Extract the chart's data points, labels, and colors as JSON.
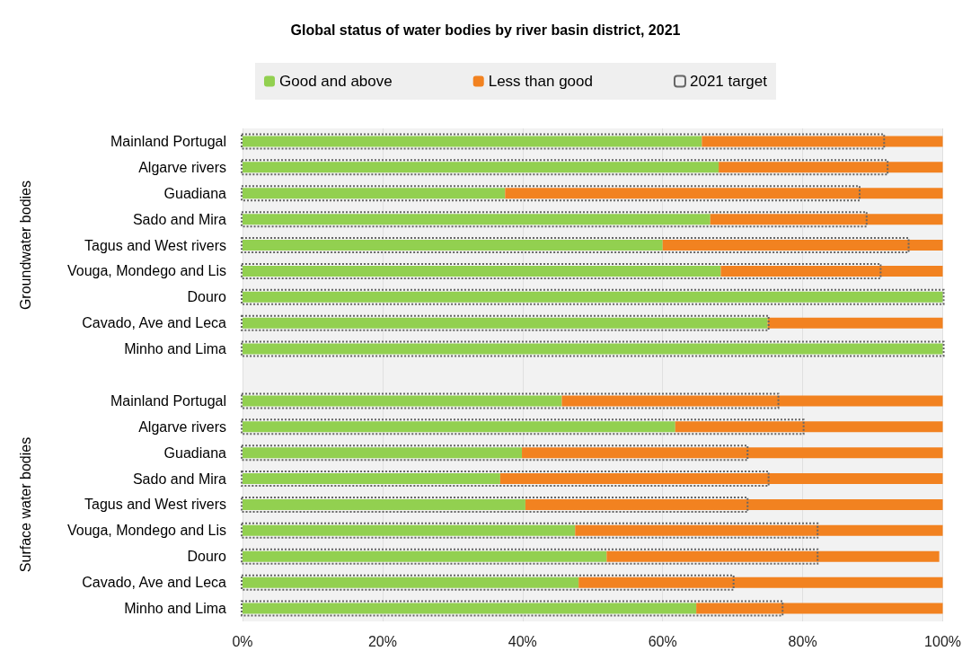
{
  "chart_data": {
    "type": "bar",
    "orientation": "horizontal",
    "title": "Global status of water bodies by river basin district, 2021",
    "categories": [
      "Mainland Portugal",
      "Algarve rivers",
      "Guadiana",
      "Sado and Mira",
      "Tagus and West rivers",
      "Vouga, Mondego and Lis",
      "Douro",
      "Cavado, Ave and Leca",
      "Minho and Lima",
      null,
      "Mainland Portugal",
      "Algarve rivers",
      "Guadiana",
      "Sado and Mira",
      "Tagus and West rivers",
      "Vouga, Mondego and Lis",
      "Douro",
      "Cavado, Ave and Leca",
      "Minho and Lima"
    ],
    "series": [
      {
        "name": "Good and above",
        "color": "#92d050",
        "base": [
          0,
          0,
          0,
          0,
          0,
          0,
          0,
          0,
          0,
          null,
          0,
          0,
          0,
          0,
          0,
          0,
          0,
          0,
          0
        ],
        "values": [
          65.6,
          68,
          37.5,
          66.8,
          60,
          68.3,
          100,
          75,
          100,
          null,
          45.6,
          61.8,
          39.9,
          36.8,
          40.4,
          47.5,
          52,
          48,
          64.8
        ]
      },
      {
        "name": "Less than good",
        "color": "#f28220",
        "base": [
          65.6,
          68,
          37.5,
          66.8,
          60,
          68.3,
          null,
          75,
          null,
          null,
          45.6,
          61.8,
          39.9,
          36.8,
          40.4,
          47.5,
          52,
          48,
          64.8
        ],
        "values": [
          34.4,
          32,
          62.5,
          33.2,
          40,
          31.7,
          null,
          25,
          null,
          null,
          54.4,
          38.2,
          60.1,
          63.2,
          59.6,
          52.5,
          47.5,
          52,
          35.2
        ]
      },
      {
        "name": "2021 target",
        "color": "#666666",
        "line_style": "dotted",
        "base": [
          0,
          0,
          0,
          0,
          0,
          0,
          0,
          0,
          0,
          null,
          0,
          0,
          0,
          0,
          0,
          0,
          0,
          0,
          0
        ],
        "values": [
          91.5,
          92,
          88,
          89,
          95,
          91,
          100,
          75,
          100,
          null,
          76.4,
          80,
          72,
          75,
          72,
          82,
          82,
          70,
          77
        ]
      }
    ],
    "annotations": [
      "Groundwater bodies",
      "Surface water bodies"
    ],
    "xlim": [
      0,
      100
    ],
    "xticks": [
      {
        "value": 0,
        "label": "0%"
      },
      {
        "value": 20,
        "label": "20%"
      },
      {
        "value": 40,
        "label": "40%"
      },
      {
        "value": 60,
        "label": "60%"
      },
      {
        "value": 80,
        "label": "80%"
      },
      {
        "value": 100,
        "label": "100%"
      }
    ],
    "grid": "x",
    "legend": "top"
  }
}
